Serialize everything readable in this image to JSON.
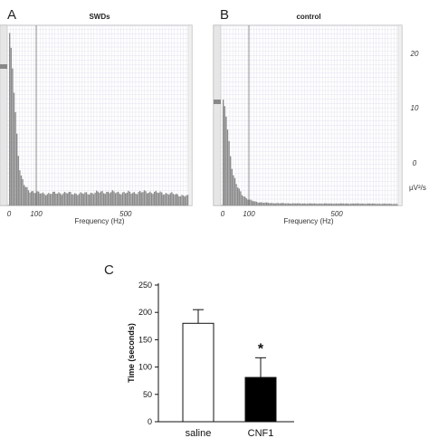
{
  "chart_data": [
    {
      "panel": "A",
      "type": "bar",
      "title": "SWDs",
      "xlabel": "Frequency (Hz)",
      "xticks": [
        "0",
        "100",
        "500"
      ],
      "x_tick_values": [
        0,
        100,
        500
      ],
      "xlim": [
        0,
        780
      ],
      "grid": true,
      "x": [
        0,
        10,
        20,
        30,
        40,
        60,
        80,
        100,
        150,
        200,
        300,
        400,
        500,
        600,
        700,
        780
      ],
      "values": [
        0.95,
        0.78,
        0.55,
        0.32,
        0.16,
        0.095,
        0.08,
        0.07,
        0.065,
        0.07,
        0.065,
        0.075,
        0.07,
        0.075,
        0.065,
        0.05
      ]
    },
    {
      "panel": "B",
      "type": "bar",
      "title": "control",
      "xlabel": "Frequency (Hz)",
      "xticks": [
        "0",
        "100",
        "500"
      ],
      "x_tick_values": [
        0,
        100,
        500
      ],
      "xlim": [
        0,
        780
      ],
      "ylabel": "µV²/s",
      "yticks": [
        "0",
        "10",
        "20"
      ],
      "y_tick_values": [
        0,
        10,
        20
      ],
      "grid": true,
      "x": [
        0,
        10,
        20,
        30,
        40,
        60,
        80,
        100,
        130,
        160,
        200,
        300,
        400,
        500,
        600,
        700,
        780
      ],
      "values": [
        0.57,
        0.52,
        0.38,
        0.25,
        0.15,
        0.085,
        0.05,
        0.03,
        0.02,
        0.016,
        0.013,
        0.011,
        0.01,
        0.01,
        0.01,
        0.009,
        0.008
      ]
    },
    {
      "panel": "C",
      "type": "bar",
      "categories": [
        "saline",
        "CNF1"
      ],
      "values": [
        180,
        81
      ],
      "errors": [
        25,
        36
      ],
      "ylabel": "Time (seconds)",
      "ylim": [
        0,
        250
      ],
      "yticks": [
        "0",
        "50",
        "100",
        "150",
        "200",
        "250"
      ],
      "y_tick_values": [
        0,
        50,
        100,
        150,
        200,
        250
      ],
      "bar_colors": [
        "#ffffff",
        "#000000"
      ],
      "annotation": "*",
      "annotation_category": "CNF1"
    }
  ]
}
